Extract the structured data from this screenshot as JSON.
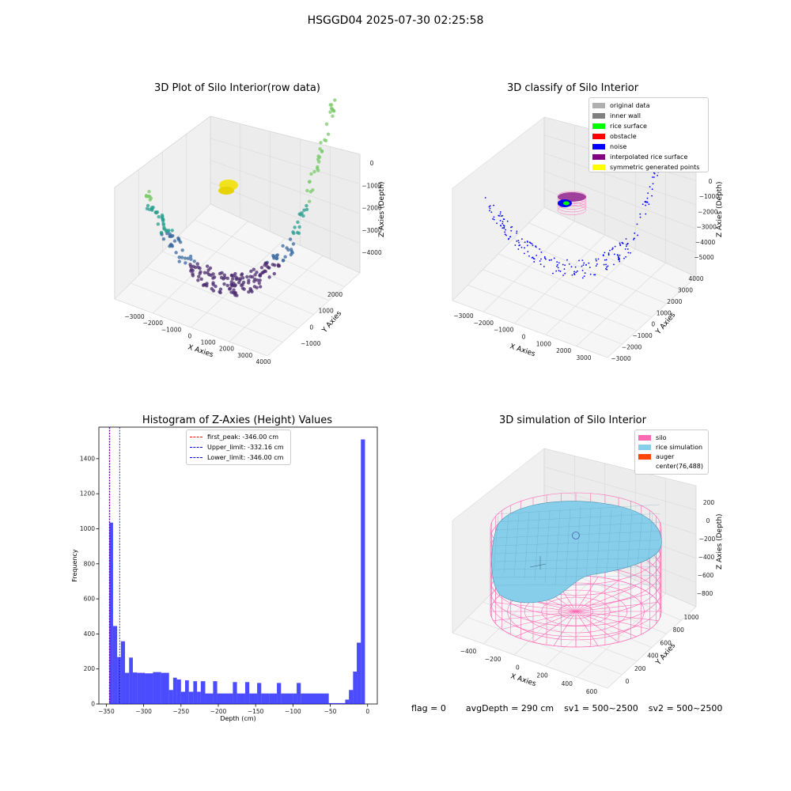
{
  "figure": {
    "suptitle": "HSGGD04 2025-07-30 02:25:58",
    "footer": {
      "flag": "flag = 0",
      "avg_depth": "avgDepth = 290 cm",
      "sv1": "sv1 = 500~2500",
      "sv2": "sv2 = 500~2500"
    }
  },
  "panels": {
    "raw": {
      "title": "3D Plot of Silo Interior(row data)",
      "xlabel": "X Axies",
      "ylabel": "Y Axies",
      "zlabel": "Z Axies (Depth)",
      "xticks": [
        "−3000",
        "−2000",
        "−1000",
        "0",
        "1000",
        "2000",
        "3000",
        "4000"
      ],
      "yticks": [
        "−1000",
        "0",
        "1000",
        "2000"
      ],
      "zticks": [
        "0",
        "−1000",
        "−2000",
        "−3000",
        "−4000"
      ]
    },
    "classify": {
      "title": "3D classify of Silo Interior",
      "xlabel": "X Axies",
      "ylabel": "Y Axies",
      "zlabel": "Z Axies (Depth)",
      "xticks": [
        "−3000",
        "−2000",
        "−1000",
        "0",
        "1000",
        "2000",
        "3000"
      ],
      "yticks": [
        "−3000",
        "−2000",
        "−1000",
        "0",
        "1000",
        "2000",
        "3000",
        "4000"
      ],
      "zticks": [
        "0",
        "−1000",
        "−2000",
        "−3000",
        "−4000",
        "−5000"
      ],
      "legend": [
        {
          "label": "original data",
          "color": "#b0b0b0"
        },
        {
          "label": "inner wall",
          "color": "#808080"
        },
        {
          "label": "rice surface",
          "color": "#00ff00"
        },
        {
          "label": "obstacle",
          "color": "#ff0000"
        },
        {
          "label": "noise",
          "color": "#0000ff"
        },
        {
          "label": "interpolated rice surface",
          "color": "#800080"
        },
        {
          "label": "symmetric generated points",
          "color": "#ffff00"
        }
      ]
    },
    "simulation": {
      "title": "3D simulation of Silo Interior",
      "xlabel": "X Axies",
      "ylabel": "Y Axies",
      "zlabel": "Z Axies (Depth)",
      "xticks": [
        "−400",
        "−200",
        "0",
        "200",
        "400",
        "600"
      ],
      "yticks": [
        "0",
        "200",
        "400",
        "600",
        "800",
        "1000"
      ],
      "zticks": [
        "200",
        "0",
        "−200",
        "−400",
        "−600",
        "−800"
      ],
      "legend": [
        {
          "label": "silo",
          "color": "#ff69b4"
        },
        {
          "label": "rice simulation",
          "color": "#87ceeb"
        },
        {
          "label": "auger",
          "color": "#ff4500"
        },
        {
          "label": "center(76,488)",
          "color": "none"
        }
      ]
    }
  },
  "chart_data": {
    "type": "bar",
    "title": "Histogram of Z-Axies (Height) Values",
    "xlabel": "Depth (cm)",
    "ylabel": "Frequency",
    "xlim": [
      -360,
      13
    ],
    "ylim": [
      0,
      1580
    ],
    "xticks": [
      -350,
      -300,
      -250,
      -200,
      -150,
      -100,
      -50,
      0
    ],
    "xtick_labels": [
      "−350",
      "−300",
      "−250",
      "−200",
      "−150",
      "−100",
      "−50",
      "0"
    ],
    "yticks": [
      0,
      200,
      400,
      600,
      800,
      1000,
      1200,
      1400
    ],
    "bar_color": "#0000ff",
    "bins": [
      {
        "x0": -346.0,
        "x1": -341.0,
        "count": 1035
      },
      {
        "x0": -341.0,
        "x1": -335.5,
        "count": 445
      },
      {
        "x0": -335.5,
        "x1": -330.5,
        "count": 268
      },
      {
        "x0": -330.5,
        "x1": -325.0,
        "count": 358
      },
      {
        "x0": -325.0,
        "x1": -319.5,
        "count": 178
      },
      {
        "x0": -319.5,
        "x1": -314.5,
        "count": 265
      },
      {
        "x0": -314.5,
        "x1": -309.0,
        "count": 180
      },
      {
        "x0": -309.0,
        "x1": -298.5,
        "count": 178
      },
      {
        "x0": -298.5,
        "x1": -287.5,
        "count": 175
      },
      {
        "x0": -287.5,
        "x1": -276.5,
        "count": 182
      },
      {
        "x0": -276.5,
        "x1": -266.0,
        "count": 178
      },
      {
        "x0": -266.0,
        "x1": -260.5,
        "count": 80
      },
      {
        "x0": -260.5,
        "x1": -255.5,
        "count": 150
      },
      {
        "x0": -255.5,
        "x1": -250.0,
        "count": 140
      },
      {
        "x0": -250.0,
        "x1": -244.5,
        "count": 70
      },
      {
        "x0": -244.5,
        "x1": -239.5,
        "count": 135
      },
      {
        "x0": -239.5,
        "x1": -233.5,
        "count": 70
      },
      {
        "x0": -233.5,
        "x1": -228.5,
        "count": 130
      },
      {
        "x0": -228.5,
        "x1": -223.5,
        "count": 70
      },
      {
        "x0": -223.5,
        "x1": -217.5,
        "count": 130
      },
      {
        "x0": -217.5,
        "x1": -207.0,
        "count": 60
      },
      {
        "x0": -207.0,
        "x1": -201.5,
        "count": 130
      },
      {
        "x0": -201.5,
        "x1": -191.0,
        "count": 60
      },
      {
        "x0": -191.0,
        "x1": -180.5,
        "count": 60
      },
      {
        "x0": -180.5,
        "x1": -175.0,
        "count": 125
      },
      {
        "x0": -175.0,
        "x1": -164.0,
        "count": 60
      },
      {
        "x0": -164.0,
        "x1": -158.5,
        "count": 125
      },
      {
        "x0": -158.5,
        "x1": -148.0,
        "count": 60
      },
      {
        "x0": -148.0,
        "x1": -142.5,
        "count": 120
      },
      {
        "x0": -142.5,
        "x1": -132.0,
        "count": 60
      },
      {
        "x0": -132.0,
        "x1": -121.5,
        "count": 60
      },
      {
        "x0": -121.5,
        "x1": -116.0,
        "count": 120
      },
      {
        "x0": -116.0,
        "x1": -100.0,
        "count": 60
      },
      {
        "x0": -100.0,
        "x1": -95.0,
        "count": 60
      },
      {
        "x0": -95.0,
        "x1": -89.5,
        "count": 120
      },
      {
        "x0": -89.5,
        "x1": -52.0,
        "count": 60
      },
      {
        "x0": -52.0,
        "x1": -41.0,
        "count": 5
      },
      {
        "x0": -41.0,
        "x1": -30.0,
        "count": 5
      },
      {
        "x0": -30.0,
        "x1": -25.0,
        "count": 25
      },
      {
        "x0": -25.0,
        "x1": -19.5,
        "count": 80
      },
      {
        "x0": -19.5,
        "x1": -14.5,
        "count": 185
      },
      {
        "x0": -14.5,
        "x1": -9.0,
        "count": 350
      },
      {
        "x0": -9.0,
        "x1": -3.5,
        "count": 1510
      }
    ],
    "reference_lines": [
      {
        "label": "first_peak: -346.00 cm",
        "x": -346.0,
        "color": "#ff0000"
      },
      {
        "label": "Upper_limit: -332.16 cm",
        "x": -332.16,
        "color": "#0000ff"
      },
      {
        "label": "Lower_limit: -346.00 cm",
        "x": -346.0,
        "color": "#0000ff"
      }
    ]
  }
}
